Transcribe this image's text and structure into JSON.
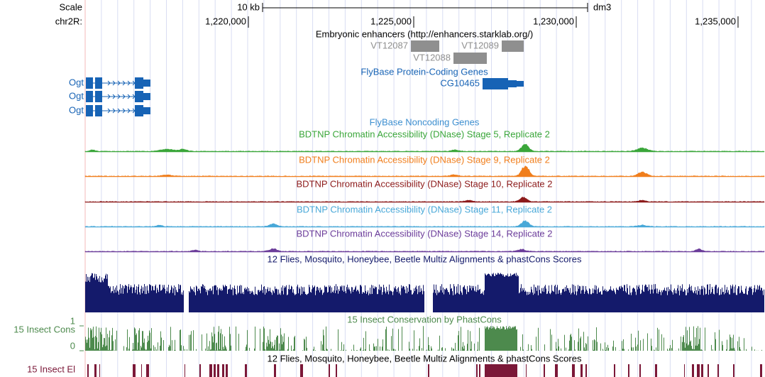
{
  "ruler": {
    "scale": "Scale",
    "scale_bar": "10 kb",
    "assembly": "dm3",
    "chrom": "chr2R:",
    "positions": [
      "1,220,000",
      "1,225,000",
      "1,230,000",
      "1,235,000"
    ]
  },
  "tracks": {
    "enhancers": {
      "title": "Embryonic enhancers (http://enhancers.starklab.org/)",
      "features": [
        "VT12087",
        "VT12088",
        "VT12089"
      ]
    },
    "protein_genes": {
      "title": "FlyBase Protein-Coding Genes",
      "genes": [
        "Ogt",
        "Ogt",
        "Ogt",
        "CG10465"
      ]
    },
    "noncoding": {
      "title": "FlyBase Noncoding Genes"
    },
    "dnase": [
      "BDTNP Chromatin Accessibility (DNase) Stage 5, Replicate 2",
      "BDTNP Chromatin Accessibility (DNase) Stage 9, Replicate 2",
      "BDTNP Chromatin Accessibility (DNase) Stage 10, Replicate 2",
      "BDTNP Chromatin Accessibility (DNase) Stage 11, Replicate 2",
      "BDTNP Chromatin Accessibility (DNase) Stage 14, Replicate 2"
    ],
    "multiz": {
      "title": "12 Flies, Mosquito, Honeybee, Beetle Multiz Alignments & phastCons Scores"
    },
    "phastcons": {
      "side_label": "15 Insect Cons",
      "title": "15 Insect Conservation by PhastCons",
      "ylim": [
        0,
        1
      ],
      "yticks": [
        0,
        1
      ]
    },
    "elements": {
      "title": "12 Flies, Mosquito, Honeybee, Beetle Multiz Alignments & phastCons Scores",
      "side_label": "15 Insect El"
    }
  }
}
